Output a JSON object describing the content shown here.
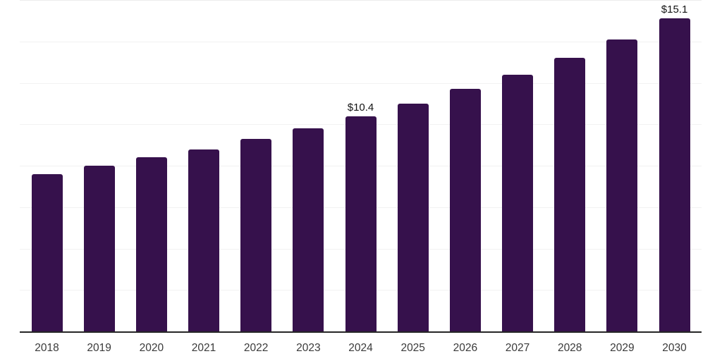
{
  "chart_data": {
    "type": "bar",
    "title": "",
    "xlabel": "",
    "ylabel": "",
    "categories": [
      "2018",
      "2019",
      "2020",
      "2021",
      "2022",
      "2023",
      "2024",
      "2025",
      "2026",
      "2027",
      "2028",
      "2029",
      "2030"
    ],
    "values": [
      7.6,
      8.0,
      8.4,
      8.8,
      9.3,
      9.8,
      10.4,
      11.0,
      11.7,
      12.4,
      13.2,
      14.1,
      15.1
    ],
    "point_labels": {
      "2024": "$10.4",
      "2030": "$15.1"
    },
    "ylim": [
      0,
      16
    ],
    "gridline_step": 2,
    "grid": "horizontal-only",
    "y_tick_labels": "none",
    "legend": "none",
    "bar_color": "#36114C",
    "axis_line_color": "#262626",
    "gridline_color": "#f2f2f2",
    "label_color": "#141414",
    "tick_label_color": "#3a3a3a"
  }
}
